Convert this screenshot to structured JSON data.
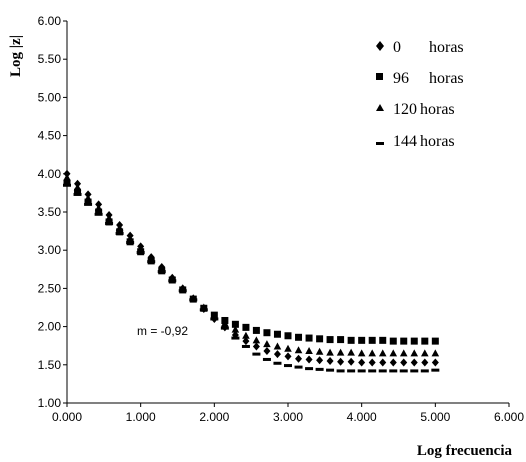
{
  "chart_data": {
    "type": "scatter",
    "xlabel": "Log frecuencia",
    "ylabel": "Log |z|",
    "xlim": [
      0,
      6
    ],
    "ylim": [
      1,
      6
    ],
    "x_ticks": [
      "0.000",
      "1.000",
      "2.000",
      "3.000",
      "4.000",
      "5.000",
      "6.000"
    ],
    "y_ticks": [
      "1.00",
      "1.50",
      "2.00",
      "2.50",
      "3.00",
      "3.50",
      "4.00",
      "4.50",
      "5.00",
      "5.50",
      "6.00"
    ],
    "grid": false,
    "legend_position": "top-right",
    "annotation": "m = -0,92",
    "series": [
      {
        "name": "0 horas",
        "label_num": "0",
        "label_unit": "horas",
        "marker": "diamond",
        "x": [
          0.0,
          0.143,
          0.286,
          0.429,
          0.571,
          0.714,
          0.857,
          1.0,
          1.143,
          1.286,
          1.429,
          1.571,
          1.714,
          1.857,
          2.0,
          2.143,
          2.286,
          2.429,
          2.571,
          2.714,
          2.857,
          3.0,
          3.143,
          3.286,
          3.429,
          3.571,
          3.714,
          3.857,
          4.0,
          4.143,
          4.286,
          4.429,
          4.571,
          4.714,
          4.857,
          5.0
        ],
        "y": [
          4.0,
          3.87,
          3.73,
          3.6,
          3.46,
          3.33,
          3.19,
          3.05,
          2.91,
          2.78,
          2.64,
          2.5,
          2.37,
          2.23,
          2.1,
          1.99,
          1.89,
          1.81,
          1.74,
          1.68,
          1.64,
          1.61,
          1.58,
          1.57,
          1.56,
          1.55,
          1.54,
          1.54,
          1.53,
          1.53,
          1.53,
          1.53,
          1.53,
          1.53,
          1.53,
          1.53
        ]
      },
      {
        "name": "96 horas",
        "label_num": "96",
        "label_unit": "horas",
        "marker": "square",
        "x": [
          0.0,
          0.143,
          0.286,
          0.429,
          0.571,
          0.714,
          0.857,
          1.0,
          1.143,
          1.286,
          1.429,
          1.571,
          1.714,
          1.857,
          2.0,
          2.143,
          2.286,
          2.429,
          2.571,
          2.714,
          2.857,
          3.0,
          3.143,
          3.286,
          3.429,
          3.571,
          3.714,
          3.857,
          4.0,
          4.143,
          4.286,
          4.429,
          4.571,
          4.714,
          4.857,
          5.0
        ],
        "y": [
          3.88,
          3.76,
          3.63,
          3.5,
          3.37,
          3.24,
          3.11,
          2.98,
          2.86,
          2.73,
          2.61,
          2.48,
          2.36,
          2.24,
          2.15,
          2.08,
          2.03,
          1.99,
          1.95,
          1.92,
          1.9,
          1.88,
          1.86,
          1.85,
          1.84,
          1.83,
          1.83,
          1.82,
          1.82,
          1.82,
          1.82,
          1.81,
          1.81,
          1.81,
          1.81,
          1.81
        ]
      },
      {
        "name": "120 horas",
        "label_num": "120",
        "label_unit": "horas",
        "marker": "triangle",
        "x": [
          0.0,
          0.143,
          0.286,
          0.429,
          0.571,
          0.714,
          0.857,
          1.0,
          1.143,
          1.286,
          1.429,
          1.571,
          1.714,
          1.857,
          2.0,
          2.143,
          2.286,
          2.429,
          2.571,
          2.714,
          2.857,
          3.0,
          3.143,
          3.286,
          3.429,
          3.571,
          3.714,
          3.857,
          4.0,
          4.143,
          4.286,
          4.429,
          4.571,
          4.714,
          4.857,
          5.0
        ],
        "y": [
          3.95,
          3.82,
          3.68,
          3.55,
          3.42,
          3.29,
          3.15,
          3.02,
          2.89,
          2.76,
          2.63,
          2.5,
          2.37,
          2.25,
          2.14,
          2.04,
          1.96,
          1.88,
          1.82,
          1.77,
          1.74,
          1.71,
          1.69,
          1.68,
          1.67,
          1.66,
          1.66,
          1.66,
          1.65,
          1.65,
          1.65,
          1.65,
          1.65,
          1.65,
          1.65,
          1.65
        ]
      },
      {
        "name": "144 horas",
        "label_num": "144",
        "label_unit": "horas",
        "marker": "dash",
        "x": [
          0.0,
          0.143,
          0.286,
          0.429,
          0.571,
          0.714,
          0.857,
          1.0,
          1.143,
          1.286,
          1.429,
          1.571,
          1.714,
          1.857,
          2.0,
          2.143,
          2.286,
          2.429,
          2.571,
          2.714,
          2.857,
          3.0,
          3.143,
          3.286,
          3.429,
          3.571,
          3.714,
          3.857,
          4.0,
          4.143,
          4.286,
          4.429,
          4.571,
          4.714,
          4.857,
          5.0
        ],
        "y": [
          3.85,
          3.73,
          3.6,
          3.47,
          3.35,
          3.22,
          3.1,
          2.97,
          2.85,
          2.72,
          2.6,
          2.47,
          2.35,
          2.22,
          2.1,
          1.98,
          1.85,
          1.74,
          1.64,
          1.57,
          1.52,
          1.49,
          1.47,
          1.45,
          1.44,
          1.43,
          1.42,
          1.42,
          1.42,
          1.42,
          1.42,
          1.42,
          1.42,
          1.42,
          1.42,
          1.43
        ]
      }
    ]
  }
}
